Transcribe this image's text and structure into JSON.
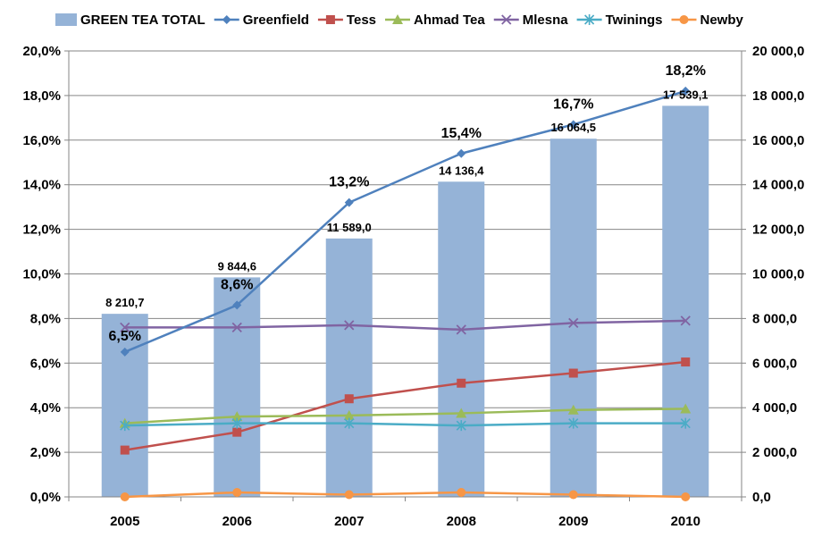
{
  "chart_data": {
    "type": "bar",
    "categories": [
      "2005",
      "2006",
      "2007",
      "2008",
      "2009",
      "2010"
    ],
    "bar_series": {
      "name": "GREEN TEA TOTAL",
      "color": "#95b3d7",
      "values": [
        8210.7,
        9844.6,
        11589.0,
        14136.4,
        16064.5,
        17539.1
      ],
      "labels": [
        "8 210,7",
        "9 844,6",
        "11 589,0",
        "14 136,4",
        "16 064,5",
        "17 539,1"
      ]
    },
    "line_series": [
      {
        "name": "Greenfield",
        "color": "#4f81bd",
        "marker": "diamond",
        "values": [
          6.5,
          8.6,
          13.2,
          15.4,
          16.7,
          18.2
        ],
        "labels": [
          "6,5%",
          "8,6%",
          "13,2%",
          "15,4%",
          "16,7%",
          "18,2%"
        ]
      },
      {
        "name": "Tess",
        "color": "#c0504d",
        "marker": "square",
        "values": [
          2.1,
          2.9,
          4.4,
          5.1,
          5.55,
          6.05
        ]
      },
      {
        "name": "Ahmad Tea",
        "color": "#9bbb59",
        "marker": "triangle",
        "values": [
          3.3,
          3.6,
          3.65,
          3.75,
          3.9,
          3.95
        ]
      },
      {
        "name": "Mlesna",
        "color": "#8064a2",
        "marker": "x",
        "values": [
          7.6,
          7.6,
          7.7,
          7.5,
          7.8,
          7.9
        ]
      },
      {
        "name": "Twinings",
        "color": "#4bacc6",
        "marker": "star",
        "values": [
          3.2,
          3.3,
          3.3,
          3.2,
          3.3,
          3.3
        ]
      },
      {
        "name": "Newby",
        "color": "#f79646",
        "marker": "circle",
        "values": [
          0.0,
          0.2,
          0.1,
          0.2,
          0.1,
          0.0
        ]
      }
    ],
    "y_left": {
      "min": 0,
      "max": 20,
      "step": 2,
      "tick_labels": [
        "0,0%",
        "2,0%",
        "4,0%",
        "6,0%",
        "8,0%",
        "10,0%",
        "12,0%",
        "14,0%",
        "16,0%",
        "18,0%",
        "20,0%"
      ]
    },
    "y_right": {
      "min": 0,
      "max": 20000,
      "step": 2000,
      "tick_labels": [
        "0,0",
        "2 000,0",
        "4 000,0",
        "6 000,0",
        "8 000,0",
        "10 000,0",
        "12 000,0",
        "14 000,0",
        "16 000,0",
        "18 000,0",
        "20 000,0"
      ]
    },
    "grid": true,
    "legend_position": "top"
  }
}
